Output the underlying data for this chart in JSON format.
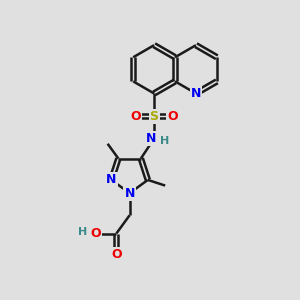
{
  "background_color": "#e0e0e0",
  "bond_color": "#1a1a1a",
  "bond_width": 1.8,
  "atom_colors": {
    "N": "#0000ee",
    "O": "#ee0000",
    "S": "#aaaa00",
    "H_teal": "#3a8a8a",
    "C": "#1a1a1a"
  },
  "font_size_atoms": 9,
  "font_size_h": 8
}
